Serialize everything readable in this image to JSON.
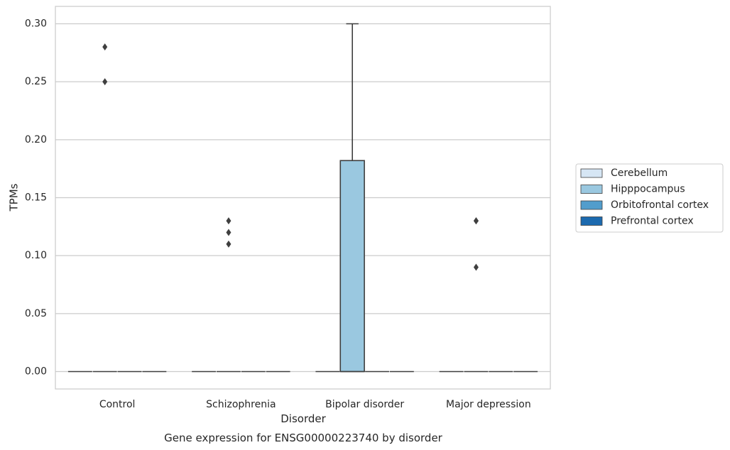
{
  "chart_data": {
    "type": "box",
    "title": "Gene expression for ENSG00000223740 by disorder",
    "xlabel": "Disorder",
    "ylabel": "TPMs",
    "ylim": [
      -0.015,
      0.315
    ],
    "yticks": [
      0.0,
      0.05,
      0.1,
      0.15,
      0.2,
      0.25,
      0.3
    ],
    "ytick_labels": [
      "0.00",
      "0.05",
      "0.10",
      "0.15",
      "0.20",
      "0.25",
      "0.30"
    ],
    "grid": true,
    "legend_position": "right",
    "categories": [
      "Control",
      "Schizophrenia",
      "Bipolar disorder",
      "Major depression"
    ],
    "series": [
      {
        "name": "Cerebellum",
        "color": "#d6e6f4"
      },
      {
        "name": "Hipppocampus",
        "color": "#9ac8e0"
      },
      {
        "name": "Orbitofrontal cortex",
        "color": "#529dcc"
      },
      {
        "name": "Prefrontal cortex",
        "color": "#1c6aaf"
      }
    ],
    "boxes": [
      {
        "category": "Control",
        "series": "Cerebellum",
        "q1": 0,
        "median": 0,
        "q3": 0,
        "whisker_low": 0,
        "whisker_high": 0,
        "outliers": []
      },
      {
        "category": "Control",
        "series": "Hipppocampus",
        "q1": 0,
        "median": 0,
        "q3": 0,
        "whisker_low": 0,
        "whisker_high": 0,
        "outliers": [
          0.25,
          0.28
        ]
      },
      {
        "category": "Control",
        "series": "Orbitofrontal cortex",
        "q1": 0,
        "median": 0,
        "q3": 0,
        "whisker_low": 0,
        "whisker_high": 0,
        "outliers": []
      },
      {
        "category": "Control",
        "series": "Prefrontal cortex",
        "q1": 0,
        "median": 0,
        "q3": 0,
        "whisker_low": 0,
        "whisker_high": 0,
        "outliers": []
      },
      {
        "category": "Schizophrenia",
        "series": "Cerebellum",
        "q1": 0,
        "median": 0,
        "q3": 0,
        "whisker_low": 0,
        "whisker_high": 0,
        "outliers": []
      },
      {
        "category": "Schizophrenia",
        "series": "Hipppocampus",
        "q1": 0,
        "median": 0,
        "q3": 0,
        "whisker_low": 0,
        "whisker_high": 0,
        "outliers": [
          0.11,
          0.12,
          0.13
        ]
      },
      {
        "category": "Schizophrenia",
        "series": "Orbitofrontal cortex",
        "q1": 0,
        "median": 0,
        "q3": 0,
        "whisker_low": 0,
        "whisker_high": 0,
        "outliers": []
      },
      {
        "category": "Schizophrenia",
        "series": "Prefrontal cortex",
        "q1": 0,
        "median": 0,
        "q3": 0,
        "whisker_low": 0,
        "whisker_high": 0,
        "outliers": []
      },
      {
        "category": "Bipolar disorder",
        "series": "Cerebellum",
        "q1": 0,
        "median": 0,
        "q3": 0,
        "whisker_low": 0,
        "whisker_high": 0,
        "outliers": []
      },
      {
        "category": "Bipolar disorder",
        "series": "Hipppocampus",
        "q1": 0,
        "median": 0,
        "q3": 0.182,
        "whisker_low": 0,
        "whisker_high": 0.3,
        "outliers": []
      },
      {
        "category": "Bipolar disorder",
        "series": "Orbitofrontal cortex",
        "q1": 0,
        "median": 0,
        "q3": 0,
        "whisker_low": 0,
        "whisker_high": 0,
        "outliers": []
      },
      {
        "category": "Bipolar disorder",
        "series": "Prefrontal cortex",
        "q1": 0,
        "median": 0,
        "q3": 0,
        "whisker_low": 0,
        "whisker_high": 0,
        "outliers": []
      },
      {
        "category": "Major depression",
        "series": "Cerebellum",
        "q1": 0,
        "median": 0,
        "q3": 0,
        "whisker_low": 0,
        "whisker_high": 0,
        "outliers": []
      },
      {
        "category": "Major depression",
        "series": "Hipppocampus",
        "q1": 0,
        "median": 0,
        "q3": 0,
        "whisker_low": 0,
        "whisker_high": 0,
        "outliers": [
          0.09,
          0.13,
          0.13
        ]
      },
      {
        "category": "Major depression",
        "series": "Orbitofrontal cortex",
        "q1": 0,
        "median": 0,
        "q3": 0,
        "whisker_low": 0,
        "whisker_high": 0,
        "outliers": []
      },
      {
        "category": "Major depression",
        "series": "Prefrontal cortex",
        "q1": 0,
        "median": 0,
        "q3": 0,
        "whisker_low": 0,
        "whisker_high": 0,
        "outliers": []
      }
    ]
  }
}
